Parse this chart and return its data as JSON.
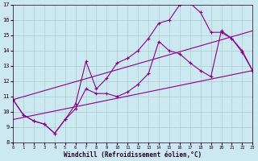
{
  "xlabel": "Windchill (Refroidissement éolien,°C)",
  "xlim": [
    0,
    23
  ],
  "ylim": [
    8,
    17
  ],
  "yticks": [
    8,
    9,
    10,
    11,
    12,
    13,
    14,
    15,
    16,
    17
  ],
  "xticks": [
    0,
    1,
    2,
    3,
    4,
    5,
    6,
    7,
    8,
    9,
    10,
    11,
    12,
    13,
    14,
    15,
    16,
    17,
    18,
    19,
    20,
    21,
    22,
    23
  ],
  "bg_color": "#cce8f0",
  "grid_color": "#aacccc",
  "line_color": "#880088",
  "spiky_x": [
    0,
    1,
    2,
    3,
    4,
    5,
    6,
    7,
    8,
    9,
    10,
    11,
    12,
    13,
    14,
    15,
    16,
    17,
    18,
    19,
    20,
    21,
    22,
    23
  ],
  "spiky_y": [
    10.8,
    9.8,
    9.4,
    9.2,
    8.6,
    9.5,
    10.5,
    13.3,
    11.5,
    12.2,
    13.2,
    13.5,
    14.0,
    14.8,
    15.8,
    16.0,
    17.0,
    17.1,
    16.5,
    15.2,
    15.2,
    14.8,
    13.9,
    12.7
  ],
  "middle_x": [
    0,
    1,
    2,
    3,
    4,
    5,
    6,
    7,
    8,
    9,
    10,
    11,
    12,
    13,
    14,
    15,
    16,
    17,
    18,
    19,
    20,
    21,
    22,
    23
  ],
  "middle_y": [
    10.8,
    9.8,
    9.4,
    9.2,
    8.6,
    9.5,
    10.2,
    11.5,
    11.2,
    11.2,
    11.0,
    11.3,
    11.8,
    12.5,
    14.6,
    14.0,
    13.8,
    13.2,
    12.7,
    12.3,
    15.3,
    14.8,
    14.0,
    12.7
  ],
  "line1_x": [
    0,
    23
  ],
  "line1_y": [
    10.8,
    15.3
  ],
  "line2_x": [
    0,
    23
  ],
  "line2_y": [
    9.5,
    12.7
  ]
}
